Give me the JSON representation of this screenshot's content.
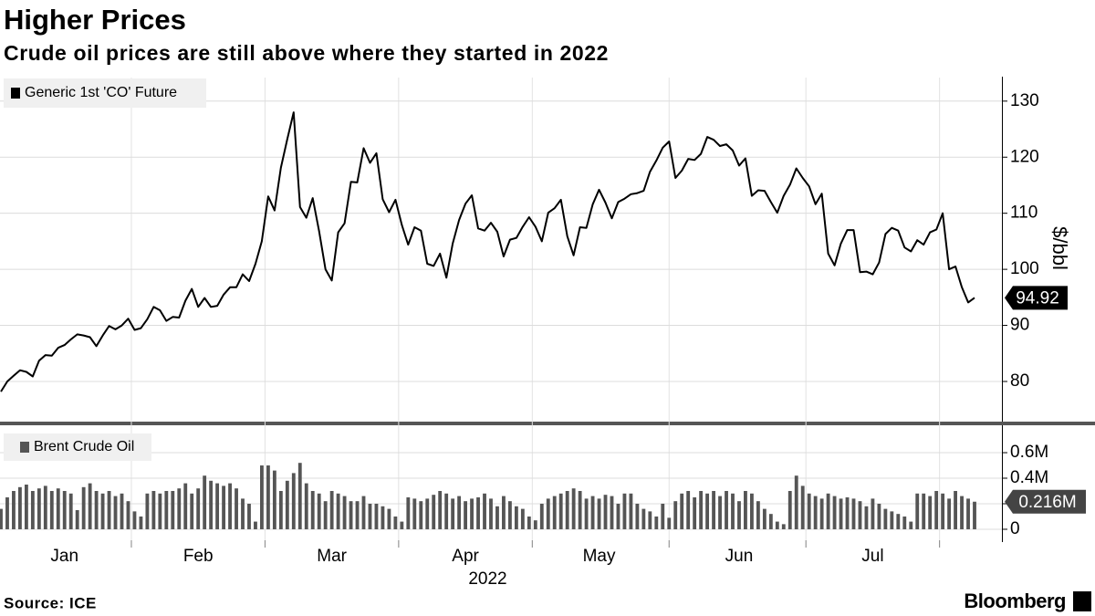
{
  "title": "Higher Prices",
  "subtitle": "Crude oil prices are still above where they started in 2022",
  "source": "Source: ICE",
  "brand": "Bloomberg",
  "chart_data": [
    {
      "type": "line",
      "ylabel": "$/bbl",
      "ylim": [
        73,
        134.2
      ],
      "yticks": [
        80,
        90,
        100,
        110,
        120,
        130
      ],
      "grid": true,
      "legend": "upper left",
      "series": [
        {
          "name": "Generic 1st 'CO' Future",
          "color": "#000000",
          "values": [
            78.2,
            80.0,
            81.0,
            82.0,
            81.7,
            80.9,
            83.7,
            84.7,
            84.6,
            86.0,
            86.5,
            87.5,
            88.4,
            88.2,
            87.9,
            86.3,
            88.2,
            89.9,
            89.3,
            90.0,
            91.2,
            89.2,
            89.5,
            91.1,
            93.3,
            92.7,
            90.8,
            91.5,
            91.4,
            94.4,
            96.5,
            93.3,
            94.9,
            93.3,
            93.5,
            95.5,
            96.8,
            96.8,
            99.1,
            97.9,
            101.0,
            105.0,
            113.0,
            110.5,
            118.1,
            123.2,
            128.0,
            111.1,
            109.2,
            112.7,
            106.8,
            100.0,
            98.0,
            106.6,
            108.2,
            115.6,
            115.5,
            121.6,
            119.0,
            120.7,
            112.5,
            110.2,
            112.4,
            107.9,
            104.4,
            107.5,
            106.9,
            101.0,
            100.6,
            102.8,
            98.5,
            104.6,
            108.8,
            111.7,
            113.2,
            107.3,
            106.9,
            108.3,
            106.7,
            102.3,
            105.3,
            105.6,
            107.6,
            109.3,
            107.6,
            105.0,
            110.1,
            110.9,
            112.4,
            105.9,
            102.5,
            107.5,
            107.4,
            111.6,
            114.2,
            111.9,
            109.1,
            112.0,
            112.6,
            113.4,
            113.6,
            114.0,
            117.4,
            119.4,
            121.7,
            122.8,
            116.3,
            117.6,
            119.7,
            119.5,
            120.6,
            123.6,
            123.1,
            122.0,
            122.3,
            121.2,
            118.5,
            119.8,
            113.1,
            114.1,
            114.0,
            112.0,
            110.1,
            113.1,
            115.1,
            118.0,
            116.3,
            114.8,
            111.6,
            113.5,
            102.8,
            100.7,
            104.6,
            107.0,
            107.0,
            99.5,
            99.6,
            99.1,
            101.2,
            106.3,
            107.4,
            106.9,
            103.9,
            103.2,
            105.2,
            104.4,
            106.6,
            107.1,
            110.0,
            100.0,
            100.5,
            96.8,
            94.1,
            94.92
          ]
        }
      ]
    },
    {
      "type": "bar",
      "xlabel": "2022",
      "ylim": [
        -0.086,
        0.786
      ],
      "yticks": [
        0,
        {
          "value": 0.2,
          "label": "0.2M"
        },
        {
          "value": 0.4,
          "label": "0.4M"
        },
        {
          "value": 0.6,
          "label": "0.6M"
        }
      ],
      "grid": true,
      "legend": "upper left",
      "categories": [
        null,
        null,
        null,
        null,
        null,
        null,
        null,
        null,
        null,
        null,
        "Jan",
        null,
        null,
        null,
        null,
        null,
        null,
        null,
        null,
        null,
        null,
        null,
        null,
        null,
        null,
        null,
        null,
        null,
        null,
        null,
        null,
        "Feb",
        null,
        null,
        null,
        null,
        null,
        null,
        null,
        null,
        null,
        null,
        null,
        null,
        null,
        null,
        null,
        null,
        null,
        null,
        null,
        null,
        "Mar",
        null,
        null,
        null,
        null,
        null,
        null,
        null,
        null,
        null,
        null,
        null,
        null,
        null,
        null,
        null,
        null,
        null,
        null,
        null,
        null,
        "Apr",
        null,
        null,
        null,
        null,
        null,
        null,
        null,
        null,
        null,
        null,
        null,
        null,
        null,
        null,
        null,
        null,
        null,
        null,
        null,
        null,
        "May",
        null,
        null,
        null,
        null,
        null,
        null,
        null,
        null,
        null,
        null,
        null,
        null,
        null,
        null,
        null,
        null,
        null,
        null,
        null,
        null,
        null,
        "Jun",
        null,
        null,
        null,
        null,
        null,
        null,
        null,
        null,
        null,
        null,
        null,
        null,
        null,
        null,
        null,
        null,
        null,
        null,
        null,
        null,
        "Jul",
        null,
        null,
        null,
        null,
        null,
        null,
        null,
        null,
        null,
        null,
        null,
        null,
        null,
        null,
        null,
        null
      ],
      "series": [
        {
          "name": "Brent Crude Oil",
          "color": "#555555",
          "values": [
            0.16,
            0.25,
            0.3,
            0.33,
            0.35,
            0.3,
            0.32,
            0.34,
            0.3,
            0.32,
            0.3,
            0.28,
            0.15,
            0.33,
            0.36,
            0.3,
            0.28,
            0.3,
            0.26,
            0.28,
            0.22,
            0.14,
            0.1,
            0.28,
            0.3,
            0.28,
            0.3,
            0.3,
            0.32,
            0.36,
            0.28,
            0.32,
            0.42,
            0.38,
            0.36,
            0.34,
            0.36,
            0.32,
            0.24,
            0.2,
            0.06,
            0.5,
            0.5,
            0.46,
            0.3,
            0.38,
            0.44,
            0.52,
            0.36,
            0.3,
            0.28,
            0.22,
            0.3,
            0.28,
            0.26,
            0.22,
            0.22,
            0.26,
            0.2,
            0.2,
            0.18,
            0.16,
            0.1,
            0.06,
            0.25,
            0.24,
            0.22,
            0.24,
            0.27,
            0.3,
            0.28,
            0.24,
            0.26,
            0.22,
            0.24,
            0.25,
            0.28,
            0.24,
            0.18,
            0.26,
            0.22,
            0.18,
            0.16,
            0.1,
            0.07,
            0.2,
            0.24,
            0.26,
            0.28,
            0.3,
            0.32,
            0.3,
            0.24,
            0.26,
            0.24,
            0.27,
            0.26,
            0.2,
            0.28,
            0.28,
            0.2,
            0.16,
            0.14,
            0.1,
            0.2,
            0.09,
            0.22,
            0.28,
            0.3,
            0.25,
            0.3,
            0.28,
            0.3,
            0.26,
            0.3,
            0.28,
            0.22,
            0.3,
            0.28,
            0.22,
            0.16,
            0.12,
            0.06,
            0.04,
            0.3,
            0.42,
            0.34,
            0.28,
            0.26,
            0.24,
            0.28,
            0.26,
            0.24,
            0.25,
            0.24,
            0.22,
            0.18,
            0.24,
            0.2,
            0.16,
            0.14,
            0.12,
            0.1,
            0.06,
            0.28,
            0.28,
            0.26,
            0.3,
            0.28,
            0.24,
            0.3,
            0.26,
            0.24,
            0.216
          ],
          "value_labels": [
            null,
            null,
            null,
            null,
            null,
            null,
            null,
            null,
            null,
            null,
            null,
            null,
            null,
            null,
            null,
            null,
            null,
            null,
            null,
            null,
            null,
            null,
            null,
            null,
            null,
            null,
            null,
            null,
            null,
            null,
            null,
            null,
            null,
            null,
            null,
            null,
            null,
            null,
            null,
            null,
            null,
            null,
            null,
            null,
            null,
            null,
            null,
            null,
            null,
            null,
            null,
            null,
            null,
            null,
            null,
            null,
            null,
            null,
            null,
            null,
            null,
            null,
            null,
            null,
            null,
            null,
            null,
            null,
            null,
            null,
            null,
            null,
            null,
            null,
            null,
            null,
            null,
            null,
            null,
            null,
            null,
            null,
            null,
            null,
            null,
            null,
            null,
            null,
            null,
            null,
            null,
            null,
            null,
            null,
            null,
            null,
            null,
            null,
            null,
            null,
            null,
            null,
            null,
            null,
            null,
            null,
            null,
            null,
            null,
            null,
            null,
            null,
            null,
            null,
            null,
            null,
            null,
            null,
            null,
            null,
            null,
            null,
            null,
            null,
            null,
            null,
            null,
            null,
            null,
            null,
            null,
            null,
            null,
            null,
            null,
            null,
            null,
            null,
            null,
            null,
            null,
            null,
            null,
            null,
            null,
            null,
            null,
            null,
            null,
            null,
            null,
            null,
            null,
            "0.216M"
          ]
        }
      ]
    }
  ]
}
